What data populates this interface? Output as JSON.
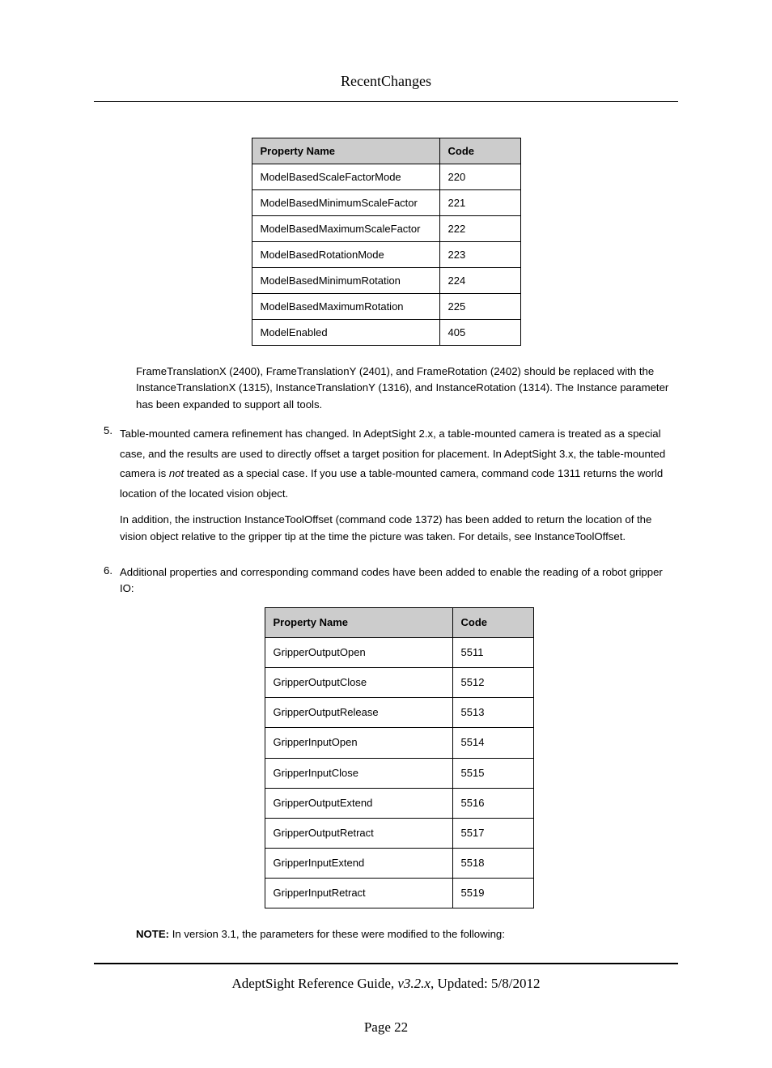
{
  "header": {
    "title": "RecentChanges"
  },
  "table1": {
    "columns": [
      "Property Name",
      "Code"
    ],
    "rows": [
      [
        "ModelBasedScaleFactorMode",
        "220"
      ],
      [
        "ModelBasedMinimumScaleFactor",
        "221"
      ],
      [
        "ModelBasedMaximumScaleFactor",
        "222"
      ],
      [
        "ModelBasedRotationMode",
        "223"
      ],
      [
        "ModelBasedMinimumRotation",
        "224"
      ],
      [
        "ModelBasedMaximumRotation",
        "225"
      ],
      [
        "ModelEnabled",
        "405"
      ]
    ]
  },
  "para_frame": "FrameTranslationX (2400), FrameTranslationY (2401), and FrameRotation (2402) should be replaced with the InstanceTranslationX (1315), InstanceTranslationY (1316), and InstanceRotation (1314). The Instance parameter has been expanded to support all tools.",
  "item5": {
    "num": "5.",
    "p1_a": "Table-mounted camera refinement has changed. In AdeptSight 2.x, a table-mounted camera is treated as a special case, and the results are used to directly offset a target position for placement. In AdeptSight 3.x, the table-mounted camera is ",
    "p1_em": "not",
    "p1_b": " treated as a special case. If you use a table-mounted camera, command code 1311 returns the world location of the located vision object.",
    "p2": "In addition, the instruction InstanceToolOffset (command code 1372) has been added to return the location of the vision object relative to the gripper tip at the time the picture was taken. For details, see InstanceToolOffset."
  },
  "item6": {
    "num": "6.",
    "p1": "Additional properties and corresponding command codes have been added to enable the reading of a robot gripper IO:"
  },
  "table2": {
    "columns": [
      "Property Name",
      "Code"
    ],
    "rows": [
      [
        "GripperOutputOpen",
        "5511"
      ],
      [
        "GripperOutputClose",
        "5512"
      ],
      [
        "GripperOutputRelease",
        "5513"
      ],
      [
        "GripperInputOpen",
        "5514"
      ],
      [
        "GripperInputClose",
        "5515"
      ],
      [
        "GripperOutputExtend",
        "5516"
      ],
      [
        "GripperOutputRetract",
        "5517"
      ],
      [
        "GripperInputExtend",
        "5518"
      ],
      [
        "GripperInputRetract",
        "5519"
      ]
    ]
  },
  "note": {
    "label": "NOTE:",
    "text": " In version 3.1, the parameters for these were modified to the following:"
  },
  "footer": {
    "title_a": "AdeptSight Reference Guide",
    "sep1": ", ",
    "version": "v3.2.x",
    "sep2": ", Updated: ",
    "date": "5/8/2012",
    "page": "Page 22"
  }
}
